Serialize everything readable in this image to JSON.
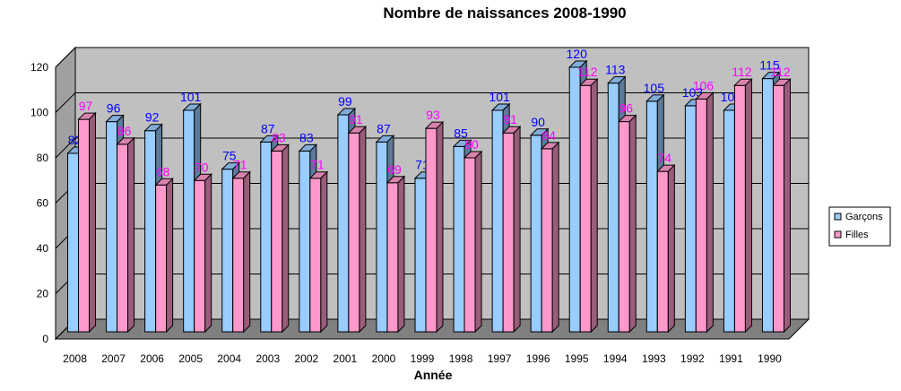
{
  "chart_data": {
    "type": "bar",
    "title": "Nombre de naissances 2008-1990",
    "xlabel": "Année",
    "ylabel": "",
    "ylim": [
      0,
      120
    ],
    "yticks": [
      0,
      20,
      40,
      60,
      80,
      100,
      120
    ],
    "categories": [
      "2008",
      "2007",
      "2006",
      "2005",
      "2004",
      "2003",
      "2002",
      "2001",
      "2000",
      "1999",
      "1998",
      "1997",
      "1996",
      "1995",
      "1994",
      "1993",
      "1992",
      "1991",
      "1990"
    ],
    "series": [
      {
        "name": "Garçons",
        "color": "#99ccff",
        "label_color": "#0000ff",
        "values": [
          82,
          96,
          92,
          101,
          75,
          87,
          83,
          99,
          87,
          71,
          85,
          101,
          90,
          120,
          113,
          105,
          103,
          101,
          115
        ]
      },
      {
        "name": "Filles",
        "color": "#ff99cc",
        "label_color": "#ff00ff",
        "values": [
          97,
          86,
          68,
          70,
          71,
          83,
          71,
          91,
          69,
          93,
          80,
          91,
          84,
          112,
          96,
          74,
          106,
          112,
          112
        ]
      }
    ],
    "grid": true,
    "legend": "right",
    "style": "3d-clustered-column",
    "wall_color": "#c0c0c0",
    "floor_color": "#808080"
  }
}
